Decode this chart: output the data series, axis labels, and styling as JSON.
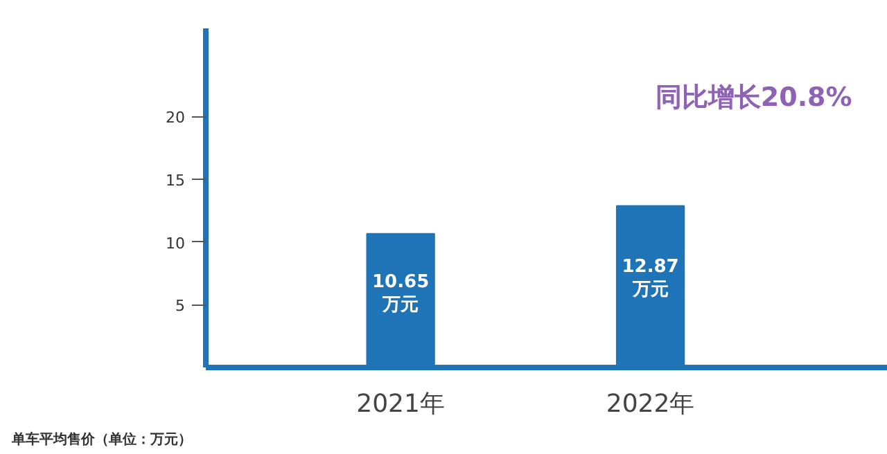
{
  "chart_data": {
    "type": "bar",
    "ylabel": "单车平均售价（单位：万元）",
    "categories": [
      "2021年",
      "2022年"
    ],
    "values": [
      10.65,
      12.87
    ],
    "color": "#1f73b7",
    "value_labels": [
      "10.65\n万元",
      "12.87\n万元"
    ],
    "ylim": [
      0,
      27
    ],
    "yticks": [
      5,
      10,
      15,
      20
    ],
    "grid": false,
    "annotations": [
      "同比增长20.8%"
    ]
  }
}
